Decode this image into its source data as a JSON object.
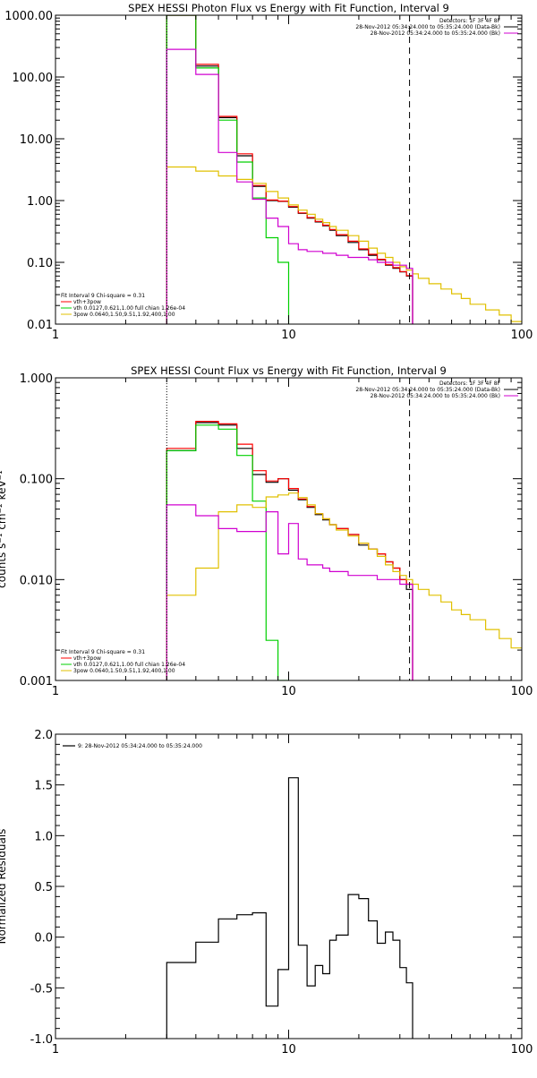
{
  "chart_data": [
    {
      "type": "line",
      "title": "SPEX HESSI Photon Flux vs Energy with Fit Function, Interval 9",
      "xscale": "log",
      "yscale": "log",
      "xlim": [
        1,
        100
      ],
      "ylim": [
        0.01,
        1000
      ],
      "x_tick_labels": [
        "1",
        "10",
        "100"
      ],
      "y_tick_labels": [
        "0.01",
        "0.10",
        "1.00",
        "10.00",
        "100.00",
        "1000.00"
      ],
      "y_tick_values": [
        0.01,
        0.1,
        1,
        10,
        100,
        1000
      ],
      "legend_top": [
        "Detectors: 1F 3F 4F 8F",
        "28-Nov-2012 05:34:24.000 to 05:35:24.000 (Data-Bk)",
        "28-Nov-2012 05:34:24.000 to 05:35:24.000 (Bk)"
      ],
      "legend_bottom": [
        "Fit Interval 9   Chi-square = 0.31",
        "vth+3pow",
        "vth 0.0127,0.621,1.00   full chian 1.26e-04",
        "3pow 0.0640,1.50,9.51,1.92,400,1.00"
      ],
      "edges": [
        3,
        4,
        5,
        6,
        7,
        8,
        9,
        10,
        11,
        12,
        13,
        14,
        15,
        16,
        18,
        20,
        22,
        24,
        26,
        28,
        30,
        32,
        34,
        36,
        40,
        45,
        50,
        55,
        60,
        70,
        80,
        90,
        100
      ],
      "series": [
        {
          "name": "Data-Bk",
          "color": "#000000",
          "n_bins": 22,
          "values": [
            1000,
            150,
            22,
            5.3,
            1.7,
            1.0,
            0.97,
            0.78,
            0.62,
            0.52,
            0.45,
            0.39,
            0.33,
            0.27,
            0.21,
            0.16,
            0.13,
            0.11,
            0.09,
            0.08,
            0.07,
            0.06
          ]
        },
        {
          "name": "vth+3pow",
          "color": "#ff0000",
          "n_bins": 22,
          "values": [
            1000,
            160,
            23,
            5.7,
            1.75,
            1.02,
            0.98,
            0.8,
            0.63,
            0.53,
            0.46,
            0.4,
            0.34,
            0.28,
            0.22,
            0.165,
            0.135,
            0.112,
            0.092,
            0.082,
            0.071,
            0.061
          ]
        },
        {
          "name": "vth",
          "color": "#00d000",
          "n_bins": 7,
          "values": [
            1000,
            140,
            20,
            4.2,
            1.1,
            0.25,
            0.1
          ]
        },
        {
          "name": "3pow",
          "color": "#e0c000",
          "n_bins": 32,
          "values": [
            3.5,
            3.0,
            2.5,
            2.2,
            1.9,
            1.4,
            1.1,
            0.85,
            0.7,
            0.6,
            0.5,
            0.44,
            0.38,
            0.33,
            0.27,
            0.22,
            0.17,
            0.14,
            0.12,
            0.1,
            0.085,
            0.075,
            0.065,
            0.055,
            0.045,
            0.037,
            0.031,
            0.026,
            0.021,
            0.017,
            0.014,
            0.011
          ]
        },
        {
          "name": "Bk",
          "color": "#d000d0",
          "n_bins": 22,
          "values": [
            280,
            110,
            6.0,
            2.0,
            1.05,
            0.52,
            0.38,
            0.2,
            0.16,
            0.15,
            0.15,
            0.14,
            0.14,
            0.13,
            0.12,
            0.12,
            0.11,
            0.1,
            0.1,
            0.09,
            0.09,
            0.08
          ]
        }
      ],
      "vlines": [
        {
          "x": 3,
          "style": "dotted"
        },
        {
          "x": 33,
          "style": "dashed"
        }
      ]
    },
    {
      "type": "line",
      "title": "SPEX HESSI Count Flux vs Energy with Fit Function, Interval 9",
      "ylabel": "counts s⁻¹ cm⁻² keV⁻¹",
      "xscale": "log",
      "yscale": "log",
      "xlim": [
        1,
        100
      ],
      "ylim": [
        0.001,
        1
      ],
      "x_tick_labels": [
        "1",
        "10",
        "100"
      ],
      "y_tick_labels": [
        "0.001",
        "0.010",
        "0.100",
        "1.000"
      ],
      "y_tick_values": [
        0.001,
        0.01,
        0.1,
        1
      ],
      "legend_top": [
        "Detectors: 1F 3F 4F 8F",
        "28-Nov-2012 05:34:24.000 to 05:35:24.000 (Data-Bk)",
        "28-Nov-2012 05:34:24.000 to 05:35:24.000 (Bk)"
      ],
      "legend_bottom": [
        "Fit Interval 9   Chi-square = 0.31",
        "vth+3pow",
        "vth 0.0127,0.621,1.00   full chian 1.26e-04",
        "3pow 0.0640,1.50,9.51,1.92,400,1.00"
      ],
      "edges": [
        3,
        4,
        5,
        6,
        7,
        8,
        9,
        10,
        11,
        12,
        13,
        14,
        15,
        16,
        18,
        20,
        22,
        24,
        26,
        28,
        30,
        32,
        34,
        36,
        40,
        45,
        50,
        55,
        60,
        70,
        80,
        90,
        100
      ],
      "series": [
        {
          "name": "Data-Bk",
          "color": "#000000",
          "n_bins": 22,
          "values": [
            0.19,
            0.36,
            0.34,
            0.2,
            0.11,
            0.092,
            0.1,
            0.077,
            0.062,
            0.052,
            0.044,
            0.039,
            0.035,
            0.032,
            0.028,
            0.022,
            0.02,
            0.018,
            0.015,
            0.013,
            0.01,
            0.008
          ]
        },
        {
          "name": "vth+3pow",
          "color": "#ff0000",
          "n_bins": 22,
          "values": [
            0.2,
            0.37,
            0.35,
            0.22,
            0.12,
            0.095,
            0.1,
            0.08,
            0.063,
            0.053,
            0.045,
            0.04,
            0.035,
            0.032,
            0.028,
            0.023,
            0.02,
            0.018,
            0.015,
            0.013,
            0.01,
            0.009
          ]
        },
        {
          "name": "vth",
          "color": "#00d000",
          "n_bins": 7,
          "values": [
            0.19,
            0.34,
            0.31,
            0.17,
            0.06,
            0.0025,
            0.0008
          ]
        },
        {
          "name": "3pow",
          "color": "#e0c000",
          "n_bins": 32,
          "values": [
            0.007,
            0.013,
            0.047,
            0.055,
            0.052,
            0.066,
            0.069,
            0.072,
            0.065,
            0.055,
            0.045,
            0.04,
            0.035,
            0.031,
            0.027,
            0.023,
            0.02,
            0.017,
            0.014,
            0.012,
            0.011,
            0.01,
            0.009,
            0.008,
            0.007,
            0.006,
            0.005,
            0.0045,
            0.004,
            0.0032,
            0.0026,
            0.0021
          ]
        },
        {
          "name": "Bk",
          "color": "#d000d0",
          "n_bins": 22,
          "values": [
            0.055,
            0.043,
            0.032,
            0.03,
            0.03,
            0.047,
            0.018,
            0.036,
            0.016,
            0.014,
            0.014,
            0.013,
            0.012,
            0.012,
            0.011,
            0.011,
            0.011,
            0.01,
            0.01,
            0.01,
            0.009,
            0.009
          ]
        }
      ],
      "vlines": [
        {
          "x": 3,
          "style": "dotted"
        },
        {
          "x": 33,
          "style": "dashed"
        }
      ]
    },
    {
      "type": "line",
      "title": "",
      "ylabel": "Normalized Residuals",
      "xscale": "log",
      "xlim": [
        1,
        100
      ],
      "ylim": [
        -1.0,
        2.0
      ],
      "x_tick_labels": [
        "1",
        "10",
        "100"
      ],
      "y_tick_labels": [
        "-1.0",
        "-0.5",
        "0.0",
        "0.5",
        "1.0",
        "1.5",
        "2.0"
      ],
      "y_tick_values": [
        -1.0,
        -0.5,
        0.0,
        0.5,
        1.0,
        1.5,
        2.0
      ],
      "legend_top": [
        "9: 28-Nov-2012 05:34:24.000 to 05:35:24.000"
      ],
      "edges": [
        3,
        4,
        5,
        6,
        7,
        8,
        9,
        10,
        11,
        12,
        13,
        14,
        15,
        16,
        18,
        20,
        22,
        24,
        26,
        28,
        30,
        32,
        34
      ],
      "series": [
        {
          "name": "9: 28-Nov-2012 05:34:24.000 to 05:35:24.000",
          "color": "#000000",
          "n_bins": 22,
          "values": [
            -0.25,
            -0.05,
            0.18,
            0.22,
            0.24,
            -0.68,
            -0.32,
            1.57,
            -0.08,
            -0.48,
            -0.28,
            -0.36,
            -0.03,
            0.02,
            0.42,
            0.38,
            0.16,
            -0.06,
            0.05,
            -0.03,
            -0.3,
            -0.45
          ]
        }
      ],
      "vlines": []
    }
  ]
}
